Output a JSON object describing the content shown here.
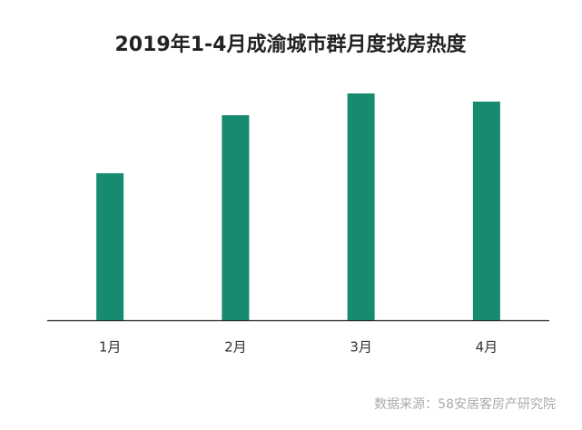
{
  "chart_data": {
    "type": "bar",
    "title": "2019年1-4月成渝城市群月度找房热度",
    "categories": [
      "1月",
      "2月",
      "3月",
      "4月"
    ],
    "values": [
      162,
      226,
      250,
      241
    ],
    "color": "#178a72",
    "ylim": [
      0,
      270
    ],
    "source": "数据来源：58安居客房产研究院"
  }
}
